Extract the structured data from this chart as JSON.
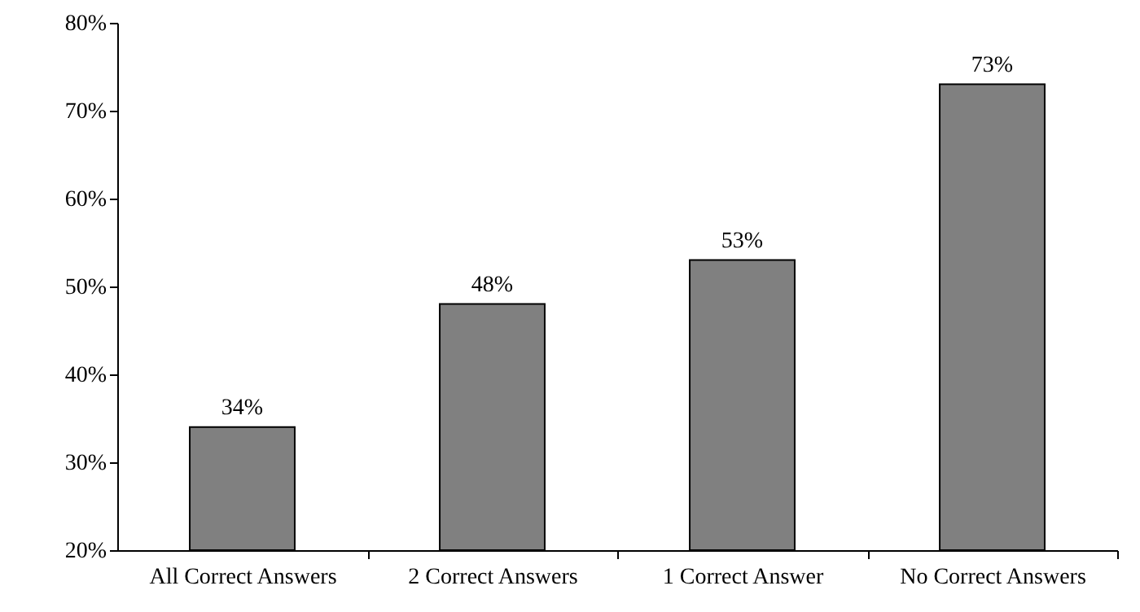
{
  "chart_data": {
    "type": "bar",
    "categories": [
      "All Correct Answers",
      "2 Correct Answers",
      "1 Correct Answer",
      "No Correct Answers"
    ],
    "values": [
      34,
      48,
      53,
      73
    ],
    "value_labels": [
      "34%",
      "48%",
      "53%",
      "73%"
    ],
    "color": "#808080",
    "ylim": [
      20,
      80
    ],
    "yticks": [
      {
        "value": 20,
        "label": "20%"
      },
      {
        "value": 30,
        "label": "30%"
      },
      {
        "value": 40,
        "label": "40%"
      },
      {
        "value": 50,
        "label": "50%"
      },
      {
        "value": 60,
        "label": "60%"
      },
      {
        "value": 70,
        "label": "70%"
      },
      {
        "value": 80,
        "label": "80%"
      }
    ],
    "grid": false
  }
}
